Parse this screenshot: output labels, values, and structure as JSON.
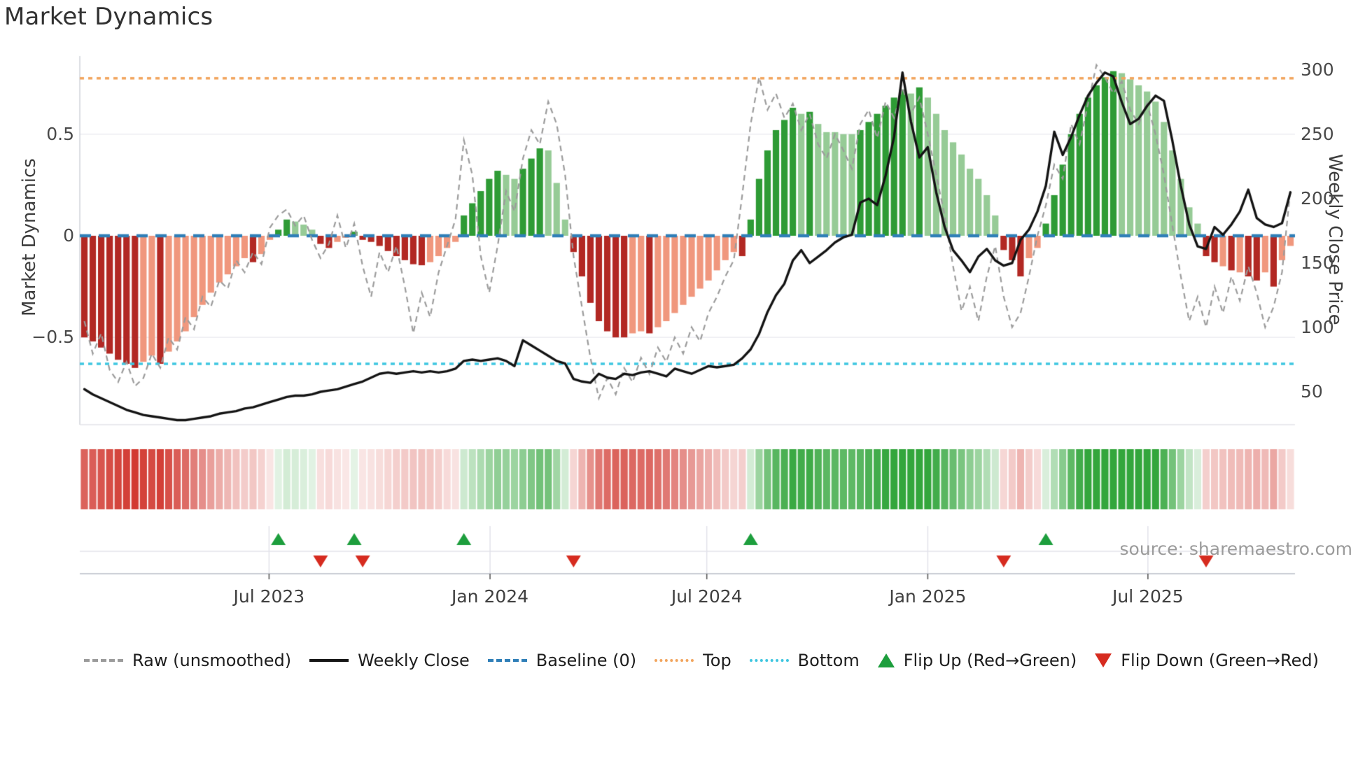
{
  "title": "Market Dynamics",
  "source": "source: sharemaestro.com",
  "axes": {
    "left_label": "Market Dynamics",
    "right_label": "Weekly Close Price",
    "left_ticks": [
      {
        "label": "0.5",
        "value": 0.5
      },
      {
        "label": "0",
        "value": 0
      },
      {
        "label": "−0.5",
        "value": -0.5
      }
    ],
    "right_ticks": [
      {
        "label": "300",
        "value": 300
      },
      {
        "label": "250",
        "value": 250
      },
      {
        "label": "200",
        "value": 200
      },
      {
        "label": "150",
        "value": 150
      },
      {
        "label": "100",
        "value": 100
      },
      {
        "label": "50",
        "value": 50
      }
    ],
    "x_ticks": [
      {
        "label": "Jul 2023",
        "week": 21.9
      },
      {
        "label": "Jan 2024",
        "week": 48.1
      },
      {
        "label": "Jul 2024",
        "week": 73.8
      },
      {
        "label": "Jan 2025",
        "week": 100.0
      },
      {
        "label": "Jul 2025",
        "week": 126.1
      }
    ]
  },
  "legend": [
    {
      "label": "Raw (unsmoothed)",
      "swatch": "dashed-line",
      "color": "#9b9b9b"
    },
    {
      "label": "Weekly Close",
      "swatch": "solid-line",
      "color": "#161616"
    },
    {
      "label": "Baseline (0)",
      "swatch": "dashed-line",
      "color": "#2f7fb8"
    },
    {
      "label": "Top",
      "swatch": "dotted-line",
      "color": "#f2a55e"
    },
    {
      "label": "Bottom",
      "swatch": "dotted-line",
      "color": "#3fc6e0"
    },
    {
      "label": "Flip Up (Red→Green)",
      "swatch": "triangle-up",
      "color": "#1d9e3d"
    },
    {
      "label": "Flip Down (Green→Red)",
      "swatch": "triangle-down",
      "color": "#d62b1f"
    }
  ],
  "colors": {
    "bar_neg_dark": "#b22823",
    "bar_neg_light": "#f0977d",
    "bar_pos_dark": "#2e9b35",
    "bar_pos_light": "#96cb96",
    "baseline": "#2f7fb8",
    "top_line": "#f2a55e",
    "bottom_line": "#3fc6e0",
    "raw_line": "#9b9b9b",
    "price_line": "#141414",
    "flip_up": "#1d9e3d",
    "flip_down": "#d62b1f",
    "grid": "#ececf2",
    "band_grid": "#e2e2ea",
    "spine": "#cfd3da",
    "axis_line": "#c9cdd4",
    "heat_pos": "#28a132",
    "heat_neg": "#cf2f26"
  },
  "chart_data": {
    "type": "bar",
    "x_unit": "week_index",
    "n_weeks": 144,
    "x_range_note": "weekly points, ~Feb 2023 through ~Oct 2025",
    "left_ylim": [
      -0.925,
      0.885
    ],
    "right_ylim": [
      24.5,
      315.5
    ],
    "baseline": 0,
    "top_threshold": 0.775,
    "bottom_threshold": -0.63,
    "grid": "horizontal at 0.5 and -0.5 only",
    "legend_position": "bottom row",
    "flip_up_weeks": [
      23,
      32,
      45,
      79,
      114
    ],
    "flip_down_weeks": [
      28,
      33,
      58,
      109,
      133
    ],
    "series": [
      {
        "name": "Market Dynamics (bars)",
        "type": "bar",
        "axis": "left",
        "values": [
          -0.5,
          -0.52,
          -0.55,
          -0.58,
          -0.61,
          -0.63,
          -0.65,
          -0.62,
          -0.59,
          -0.63,
          -0.57,
          -0.52,
          -0.47,
          -0.4,
          -0.34,
          -0.28,
          -0.23,
          -0.19,
          -0.15,
          -0.11,
          -0.13,
          -0.09,
          -0.02,
          0.03,
          0.08,
          0.07,
          0.055,
          0.03,
          -0.04,
          -0.06,
          -0.03,
          -0.01,
          0.02,
          -0.02,
          -0.03,
          -0.05,
          -0.075,
          -0.1,
          -0.12,
          -0.14,
          -0.145,
          -0.13,
          -0.1,
          -0.06,
          -0.03,
          0.1,
          0.16,
          0.22,
          0.28,
          0.32,
          0.3,
          0.28,
          0.33,
          0.38,
          0.43,
          0.42,
          0.26,
          0.08,
          -0.08,
          -0.2,
          -0.33,
          -0.42,
          -0.47,
          -0.5,
          -0.5,
          -0.48,
          -0.47,
          -0.48,
          -0.45,
          -0.42,
          -0.38,
          -0.34,
          -0.3,
          -0.26,
          -0.22,
          -0.17,
          -0.12,
          -0.08,
          -0.1,
          0.08,
          0.28,
          0.42,
          0.52,
          0.57,
          0.63,
          0.6,
          0.61,
          0.55,
          0.51,
          0.51,
          0.5,
          0.5,
          0.52,
          0.56,
          0.6,
          0.64,
          0.68,
          0.72,
          0.7,
          0.73,
          0.68,
          0.6,
          0.52,
          0.46,
          0.4,
          0.33,
          0.28,
          0.2,
          0.1,
          -0.07,
          -0.12,
          -0.2,
          -0.11,
          -0.06,
          0.06,
          0.2,
          0.35,
          0.5,
          0.6,
          0.68,
          0.74,
          0.78,
          0.81,
          0.8,
          0.77,
          0.74,
          0.71,
          0.66,
          0.56,
          0.42,
          0.28,
          0.14,
          0.06,
          -0.1,
          -0.13,
          -0.15,
          -0.17,
          -0.18,
          -0.2,
          -0.22,
          -0.18,
          -0.25,
          -0.12,
          -0.05
        ],
        "shades": [
          "d",
          "d",
          "d",
          "d",
          "d",
          "d",
          "d",
          "l",
          "l",
          "d",
          "l",
          "l",
          "l",
          "l",
          "l",
          "l",
          "l",
          "l",
          "l",
          "l",
          "d",
          "l",
          "l",
          "d",
          "d",
          "l",
          "l",
          "l",
          "d",
          "d",
          "l",
          "l",
          "d",
          "d",
          "d",
          "d",
          "d",
          "d",
          "d",
          "d",
          "d",
          "l",
          "l",
          "l",
          "l",
          "d",
          "d",
          "d",
          "d",
          "d",
          "l",
          "l",
          "d",
          "d",
          "d",
          "l",
          "l",
          "l",
          "d",
          "d",
          "d",
          "d",
          "d",
          "d",
          "d",
          "l",
          "l",
          "d",
          "l",
          "l",
          "l",
          "l",
          "l",
          "l",
          "l",
          "l",
          "l",
          "l",
          "d",
          "d",
          "d",
          "d",
          "d",
          "d",
          "d",
          "l",
          "d",
          "l",
          "l",
          "l",
          "l",
          "l",
          "d",
          "d",
          "d",
          "d",
          "d",
          "d",
          "l",
          "d",
          "l",
          "l",
          "l",
          "l",
          "l",
          "l",
          "l",
          "l",
          "l",
          "d",
          "d",
          "d",
          "l",
          "l",
          "d",
          "d",
          "d",
          "d",
          "d",
          "d",
          "d",
          "d",
          "d",
          "l",
          "l",
          "l",
          "l",
          "l",
          "l",
          "l",
          "l",
          "l",
          "l",
          "d",
          "d",
          "l",
          "d",
          "l",
          "d",
          "d",
          "l",
          "d",
          "l",
          "l"
        ],
        "shade_meaning": "d = intense shade (momentum strengthening), l = light shade (momentum fading); sign>0 green, sign<0 red"
      },
      {
        "name": "Raw (unsmoothed)",
        "type": "line",
        "style": "dashed",
        "axis": "left",
        "values": [
          -0.42,
          -0.58,
          -0.48,
          -0.66,
          -0.72,
          -0.62,
          -0.74,
          -0.7,
          -0.58,
          -0.65,
          -0.5,
          -0.56,
          -0.4,
          -0.46,
          -0.3,
          -0.35,
          -0.22,
          -0.26,
          -0.12,
          -0.18,
          -0.08,
          -0.14,
          0.04,
          0.1,
          0.13,
          0.05,
          0.1,
          -0.02,
          -0.11,
          -0.04,
          0.1,
          -0.06,
          0.06,
          -0.15,
          -0.3,
          -0.08,
          -0.18,
          -0.05,
          -0.25,
          -0.48,
          -0.28,
          -0.4,
          -0.18,
          -0.05,
          0.08,
          0.47,
          0.3,
          -0.1,
          -0.28,
          -0.05,
          0.22,
          0.12,
          0.38,
          0.52,
          0.45,
          0.66,
          0.55,
          0.3,
          -0.1,
          -0.35,
          -0.6,
          -0.8,
          -0.7,
          -0.78,
          -0.65,
          -0.72,
          -0.6,
          -0.68,
          -0.55,
          -0.62,
          -0.5,
          -0.58,
          -0.45,
          -0.52,
          -0.38,
          -0.3,
          -0.2,
          -0.12,
          0.2,
          0.55,
          0.78,
          0.62,
          0.7,
          0.58,
          0.65,
          0.52,
          0.6,
          0.45,
          0.38,
          0.5,
          0.42,
          0.33,
          0.55,
          0.62,
          0.48,
          0.66,
          0.58,
          0.73,
          0.6,
          0.68,
          0.5,
          0.3,
          0.1,
          -0.15,
          -0.37,
          -0.25,
          -0.42,
          -0.2,
          -0.05,
          -0.3,
          -0.45,
          -0.38,
          -0.2,
          0.0,
          0.15,
          0.35,
          0.28,
          0.55,
          0.45,
          0.65,
          0.84,
          0.78,
          0.7,
          0.76,
          0.62,
          0.55,
          0.65,
          0.5,
          0.3,
          0.05,
          -0.2,
          -0.42,
          -0.3,
          -0.45,
          -0.25,
          -0.38,
          -0.2,
          -0.32,
          -0.15,
          -0.28,
          -0.45,
          -0.35,
          -0.18,
          0.23
        ]
      },
      {
        "name": "Weekly Close",
        "type": "line",
        "style": "solid",
        "axis": "right",
        "values": [
          52,
          48,
          45,
          42,
          39,
          36,
          34,
          32,
          31,
          30,
          29,
          28,
          28,
          29,
          30,
          31,
          33,
          34,
          35,
          37,
          38,
          40,
          42,
          44,
          46,
          47,
          47,
          48,
          50,
          51,
          52,
          54,
          56,
          58,
          61,
          64,
          65,
          64,
          65,
          66,
          65,
          66,
          65,
          66,
          68,
          74,
          75,
          74,
          75,
          76,
          74,
          70,
          90,
          86,
          82,
          78,
          74,
          72,
          60,
          58,
          57,
          64,
          61,
          60,
          64,
          63,
          65,
          66,
          64,
          62,
          68,
          66,
          64,
          67,
          70,
          69,
          70,
          71,
          76,
          83,
          95,
          112,
          125,
          134,
          152,
          160,
          150,
          155,
          160,
          166,
          170,
          172,
          197,
          200,
          195,
          218,
          248,
          298,
          260,
          232,
          240,
          205,
          178,
          160,
          152,
          143,
          155,
          161,
          152,
          148,
          150,
          168,
          176,
          190,
          210,
          252,
          234,
          248,
          265,
          280,
          290,
          298,
          295,
          275,
          258,
          262,
          272,
          280,
          276,
          245,
          210,
          180,
          163,
          161,
          178,
          172,
          180,
          190,
          207,
          185,
          180,
          178,
          181,
          205
        ]
      }
    ],
    "heatmap_strip": {
      "derived_from": "Market Dynamics (bars)",
      "description": "one cell per week below main chart; green for positive, red for negative, opacity scales with |value|"
    },
    "marker_rows": {
      "up_row": "green up-triangles at flip_up_weeks",
      "down_row": "red down-triangles at flip_down_weeks"
    }
  }
}
